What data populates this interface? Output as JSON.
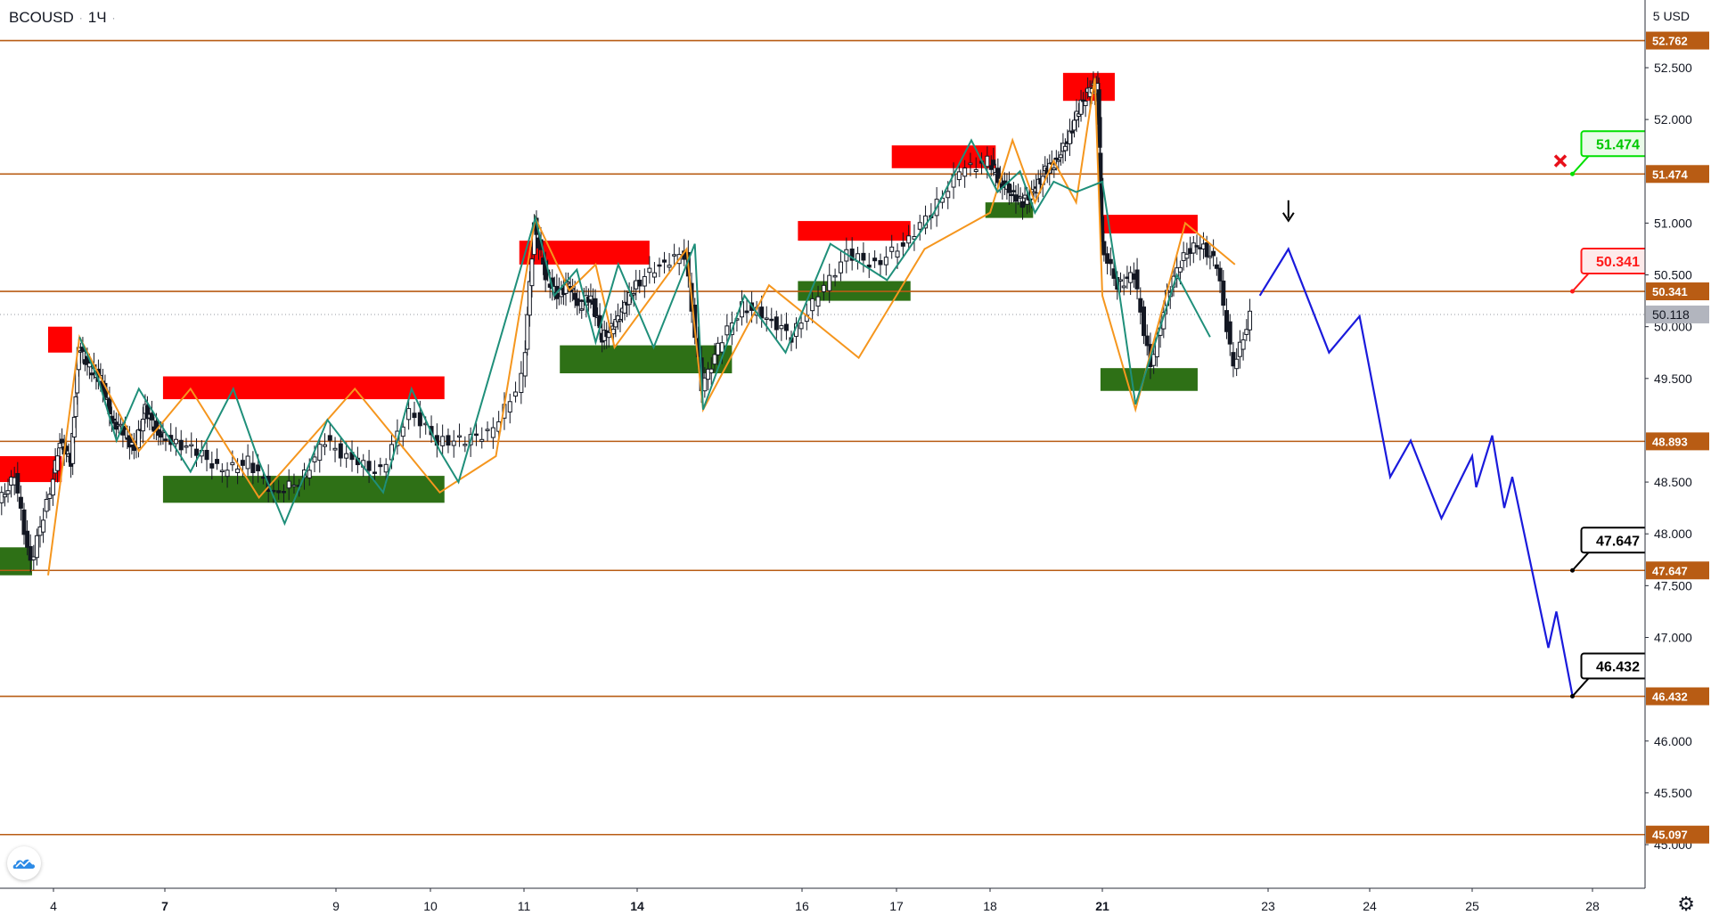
{
  "header": {
    "symbol": "BCOUSD",
    "interval": "1Ч"
  },
  "price_axis": {
    "unit": "USD",
    "unit_prefix": "5"
  },
  "icons": {
    "logo": "tradingview-cloud-logo",
    "settings": "gear-icon",
    "close": "close-icon",
    "arrow": "arrow-down-icon"
  },
  "colors": {
    "level_line": "#b85c14",
    "supply_zone": "#ff0000",
    "demand_zone": "#2e7016",
    "zigzag_up": "#f5961e",
    "zigzag_down": "#1f8f7a",
    "forecast": "#1a1adc",
    "candle": "#131722",
    "current_price": "#b2b5be"
  },
  "chart_data": {
    "type": "line",
    "title": "BCOUSD",
    "ylim": [
      44.75,
      53.05
    ],
    "y_ticks": [
      "52.500",
      "52.000",
      "51.000",
      "50.500",
      "50.000",
      "49.500",
      "48.500",
      "48.000",
      "47.500",
      "47.000",
      "46.000",
      "45.500",
      "45.000"
    ],
    "x_ticks": [
      "4",
      "7",
      "9",
      "10",
      "11",
      "14",
      "16",
      "17",
      "18",
      "21",
      "23",
      "24",
      "25",
      "28"
    ],
    "levels": [
      52.762,
      51.474,
      50.341,
      48.893,
      47.647,
      46.432,
      45.097
    ],
    "level_labels": [
      "52.762",
      "51.474",
      "50.341",
      "48.893",
      "47.647",
      "46.432",
      "45.097"
    ],
    "current_price": 50.118,
    "current_price_label": "50.118",
    "supply_zones": [
      {
        "from": "3",
        "to": "4",
        "low": 48.5,
        "high": 48.75
      },
      {
        "from": "4",
        "to": "4",
        "low": 49.75,
        "high": 50.0
      },
      {
        "from": "7",
        "to": "10",
        "low": 49.3,
        "high": 49.52
      },
      {
        "from": "11",
        "to": "14",
        "low": 50.6,
        "high": 50.83
      },
      {
        "from": "16",
        "to": "17",
        "low": 50.83,
        "high": 51.02
      },
      {
        "from": "17",
        "to": "18",
        "low": 51.53,
        "high": 51.75
      },
      {
        "from": "20",
        "to": "21",
        "low": 52.18,
        "high": 52.45
      },
      {
        "from": "21",
        "to": "22",
        "low": 50.9,
        "high": 51.08
      }
    ],
    "demand_zones": [
      {
        "from": "3",
        "to": "3",
        "low": 47.6,
        "high": 47.87
      },
      {
        "from": "7",
        "to": "10",
        "low": 48.3,
        "high": 48.56
      },
      {
        "from": "12",
        "to": "15",
        "low": 49.55,
        "high": 49.82
      },
      {
        "from": "16",
        "to": "17",
        "low": 50.25,
        "high": 50.44
      },
      {
        "from": "18",
        "to": "19",
        "low": 51.05,
        "high": 51.2
      },
      {
        "from": "21",
        "to": "22",
        "low": 49.38,
        "high": 49.6
      }
    ],
    "zigzag_up": [
      [
        3.9,
        47.6
      ],
      [
        4.7,
        49.9
      ],
      [
        6.3,
        48.8
      ],
      [
        7.3,
        49.4
      ],
      [
        8.1,
        48.35
      ],
      [
        9.2,
        49.4
      ],
      [
        10.1,
        48.4
      ],
      [
        10.7,
        48.75
      ],
      [
        11.3,
        51.05
      ],
      [
        12.2,
        50.35
      ],
      [
        12.9,
        50.6
      ],
      [
        13.4,
        49.8
      ],
      [
        14.6,
        50.75
      ],
      [
        14.8,
        49.2
      ],
      [
        15.6,
        50.4
      ],
      [
        16.6,
        49.7
      ],
      [
        17.3,
        50.75
      ],
      [
        18.0,
        51.1
      ],
      [
        18.6,
        51.8
      ],
      [
        19.2,
        51.2
      ],
      [
        19.7,
        51.6
      ],
      [
        20.3,
        51.2
      ],
      [
        20.8,
        52.4
      ],
      [
        21.0,
        50.3
      ],
      [
        21.4,
        49.2
      ],
      [
        22.0,
        51.0
      ],
      [
        22.6,
        50.6
      ]
    ],
    "zigzag_down": [
      [
        4.7,
        49.9
      ],
      [
        5.2,
        49.5
      ],
      [
        5.7,
        48.9
      ],
      [
        6.3,
        49.4
      ],
      [
        6.9,
        49.05
      ],
      [
        7.3,
        48.6
      ],
      [
        7.8,
        49.4
      ],
      [
        8.1,
        48.7
      ],
      [
        8.4,
        48.1
      ],
      [
        8.9,
        49.1
      ],
      [
        9.5,
        48.4
      ],
      [
        9.8,
        49.4
      ],
      [
        10.1,
        48.8
      ],
      [
        10.3,
        48.5
      ],
      [
        11.3,
        51.05
      ],
      [
        11.8,
        50.3
      ],
      [
        12.4,
        50.55
      ],
      [
        12.9,
        49.85
      ],
      [
        13.5,
        50.6
      ],
      [
        14.2,
        49.8
      ],
      [
        14.7,
        50.8
      ],
      [
        14.8,
        49.2
      ],
      [
        15.3,
        50.3
      ],
      [
        15.8,
        49.75
      ],
      [
        16.3,
        50.8
      ],
      [
        16.9,
        50.45
      ],
      [
        17.4,
        51.1
      ],
      [
        17.8,
        51.8
      ],
      [
        18.2,
        51.3
      ],
      [
        18.8,
        51.5
      ],
      [
        19.2,
        51.1
      ],
      [
        19.7,
        51.4
      ],
      [
        20.3,
        51.3
      ],
      [
        21.0,
        51.4
      ],
      [
        21.2,
        50.35
      ],
      [
        21.4,
        49.25
      ],
      [
        21.9,
        50.5
      ],
      [
        22.3,
        49.9
      ]
    ],
    "candle_path": [
      [
        3.0,
        48.3
      ],
      [
        3.3,
        48.55
      ],
      [
        3.6,
        47.7
      ],
      [
        3.9,
        48.3
      ],
      [
        4.2,
        48.9
      ],
      [
        4.5,
        48.7
      ],
      [
        4.7,
        49.8
      ],
      [
        5.0,
        49.6
      ],
      [
        5.3,
        49.5
      ],
      [
        5.6,
        49.1
      ],
      [
        5.9,
        49.0
      ],
      [
        6.2,
        48.8
      ],
      [
        6.5,
        49.2
      ],
      [
        6.8,
        49.0
      ],
      [
        7.1,
        48.9
      ],
      [
        7.4,
        48.8
      ],
      [
        7.7,
        48.6
      ],
      [
        8.0,
        48.7
      ],
      [
        8.3,
        48.4
      ],
      [
        8.6,
        48.5
      ],
      [
        8.9,
        48.9
      ],
      [
        9.2,
        48.7
      ],
      [
        9.5,
        48.6
      ],
      [
        9.8,
        49.2
      ],
      [
        10.1,
        48.9
      ],
      [
        10.4,
        48.9
      ],
      [
        10.7,
        49.0
      ],
      [
        11.0,
        49.5
      ],
      [
        11.3,
        51.0
      ],
      [
        11.6,
        50.5
      ],
      [
        11.9,
        50.3
      ],
      [
        12.2,
        50.4
      ],
      [
        12.5,
        50.2
      ],
      [
        12.8,
        50.3
      ],
      [
        13.1,
        49.9
      ],
      [
        13.4,
        50.0
      ],
      [
        13.7,
        50.2
      ],
      [
        14.0,
        50.4
      ],
      [
        14.3,
        50.6
      ],
      [
        14.6,
        50.7
      ],
      [
        14.8,
        49.4
      ],
      [
        15.0,
        49.8
      ],
      [
        15.3,
        50.2
      ],
      [
        15.6,
        50.1
      ],
      [
        15.9,
        49.9
      ],
      [
        16.2,
        50.3
      ],
      [
        16.5,
        50.7
      ],
      [
        16.8,
        50.6
      ],
      [
        17.1,
        50.8
      ],
      [
        17.4,
        51.1
      ],
      [
        17.7,
        51.5
      ],
      [
        18.0,
        51.6
      ],
      [
        18.3,
        51.4
      ],
      [
        18.6,
        51.3
      ],
      [
        18.9,
        51.2
      ],
      [
        19.2,
        51.3
      ],
      [
        19.5,
        51.5
      ],
      [
        19.8,
        51.6
      ],
      [
        20.1,
        51.8
      ],
      [
        20.4,
        52.1
      ],
      [
        20.7,
        52.3
      ],
      [
        20.9,
        52.3
      ],
      [
        21.0,
        50.8
      ],
      [
        21.2,
        50.4
      ],
      [
        21.4,
        50.5
      ],
      [
        21.6,
        49.6
      ],
      [
        21.8,
        50.3
      ],
      [
        22.0,
        50.7
      ],
      [
        22.2,
        50.8
      ],
      [
        22.4,
        50.6
      ],
      [
        22.6,
        49.6
      ],
      [
        22.8,
        50.1
      ]
    ],
    "forecast": [
      [
        22.9,
        50.3
      ],
      [
        23.2,
        50.75
      ],
      [
        23.6,
        49.75
      ],
      [
        23.9,
        50.1
      ],
      [
        24.2,
        48.55
      ],
      [
        24.4,
        48.9
      ],
      [
        24.7,
        48.15
      ],
      [
        25.0,
        48.75
      ],
      [
        25.1,
        48.45
      ],
      [
        25.5,
        48.95
      ],
      [
        25.8,
        48.25
      ],
      [
        26.0,
        48.55
      ],
      [
        26.9,
        46.9
      ],
      [
        27.1,
        47.25
      ],
      [
        27.5,
        46.44
      ]
    ],
    "forecast_peak_arrow": [
      23.2,
      51.1
    ],
    "callouts": [
      {
        "label": "51.474",
        "value": 51.474,
        "anchor_x": 27.5,
        "color": "#00e000",
        "fill": "#eafbe9"
      },
      {
        "label": "50.341",
        "value": 50.341,
        "anchor_x": 27.5,
        "color": "#ff1a1a",
        "fill": "#fdeaea"
      },
      {
        "label": "47.647",
        "value": 47.647,
        "anchor_x": 27.5,
        "color": "#000000",
        "fill": "#ffffff"
      },
      {
        "label": "46.432",
        "value": 46.432,
        "anchor_x": 27.5,
        "color": "#000000",
        "fill": "#ffffff"
      }
    ],
    "invalidation_mark": [
      27.2,
      51.6
    ],
    "xlabel": "",
    "ylabel": ""
  }
}
